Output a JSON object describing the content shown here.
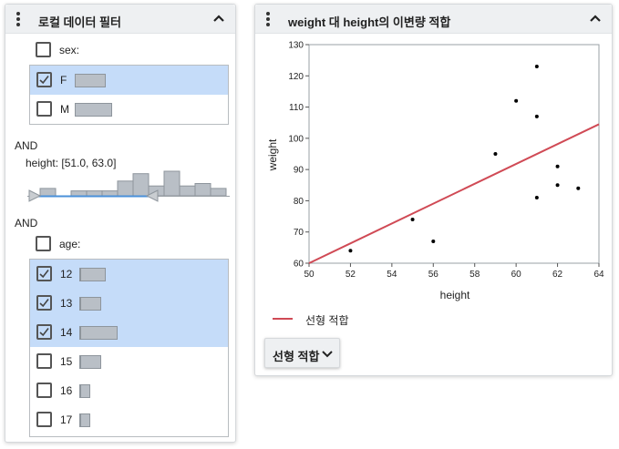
{
  "filter_panel": {
    "title": "로컬 데이터 필터",
    "sex_filter": {
      "label": "sex:",
      "items": [
        {
          "label": "F",
          "checked": true,
          "share": 0.42
        },
        {
          "label": "M",
          "checked": false,
          "share": 0.5
        }
      ]
    },
    "and_1": "AND",
    "height_filter": {
      "label": "height: [51.0, 63.0]",
      "range": [
        51.0,
        63.0
      ],
      "histogram_heights": [
        0.3,
        0.0,
        0.2,
        0.2,
        0.2,
        0.6,
        0.9,
        0.4,
        1.0,
        0.4,
        0.5,
        0.3
      ]
    },
    "and_2": "AND",
    "age_filter": {
      "label": "age:",
      "items": [
        {
          "label": "12",
          "checked": true,
          "share": 0.34
        },
        {
          "label": "13",
          "checked": true,
          "share": 0.28
        },
        {
          "label": "14",
          "checked": true,
          "share": 0.5
        },
        {
          "label": "15",
          "checked": false,
          "share": 0.28
        },
        {
          "label": "16",
          "checked": false,
          "share": 0.14
        },
        {
          "label": "17",
          "checked": false,
          "share": 0.14
        }
      ]
    }
  },
  "chart_panel": {
    "title": "weight 대 height의 이변량 적합",
    "legend_label": "선형 적합",
    "fit_button_label": "선형 적합"
  },
  "colors": {
    "selected_row": "#c5dcf9",
    "fit_line": "#d04a55",
    "range_line": "#4a90d9",
    "bar_fill": "#b9bfc6"
  },
  "chart_data": {
    "type": "scatter",
    "title": "",
    "xlabel": "height",
    "ylabel": "weight",
    "xlim": [
      50,
      64
    ],
    "ylim": [
      60,
      130
    ],
    "x_ticks": [
      50,
      52,
      54,
      56,
      58,
      60,
      62,
      64
    ],
    "y_ticks": [
      60,
      70,
      80,
      90,
      100,
      110,
      120,
      130
    ],
    "points": [
      {
        "x": 52.0,
        "y": 64.0
      },
      {
        "x": 55.0,
        "y": 74.0
      },
      {
        "x": 56.0,
        "y": 67.0
      },
      {
        "x": 59.0,
        "y": 95.0
      },
      {
        "x": 60.0,
        "y": 112.0
      },
      {
        "x": 61.0,
        "y": 123.0
      },
      {
        "x": 61.0,
        "y": 107.0
      },
      {
        "x": 61.0,
        "y": 81.0
      },
      {
        "x": 62.0,
        "y": 91.0
      },
      {
        "x": 62.0,
        "y": 85.0
      },
      {
        "x": 63.0,
        "y": 84.0
      }
    ],
    "fit_line": {
      "name": "선형 적합",
      "x": [
        50,
        64
      ],
      "y": [
        60,
        104.5
      ]
    },
    "grid": false,
    "legend_position": "bottom-left"
  }
}
